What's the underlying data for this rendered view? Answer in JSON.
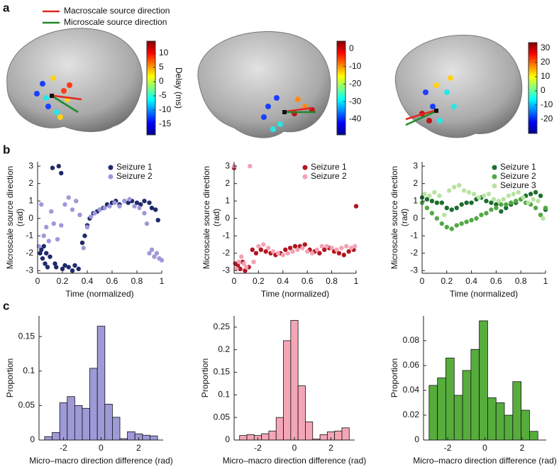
{
  "panel_labels": [
    "a",
    "b",
    "c"
  ],
  "legend_a": {
    "items": [
      {
        "name": "Macroscale source direction",
        "color": "#e3261e"
      },
      {
        "name": "Microscale source direction",
        "color": "#1d8a2a"
      }
    ]
  },
  "colorbars": [
    {
      "label": "Delay (ms)",
      "lim": [
        -18.75,
        14.25
      ],
      "ticks": [
        10,
        5,
        0,
        -5,
        -10,
        -15
      ]
    },
    {
      "lim": [
        -48.9,
        4.4
      ],
      "ticks": [
        0,
        -10,
        -20,
        -30,
        -40
      ]
    },
    {
      "lim": [
        -30,
        34
      ],
      "ticks": [
        30,
        20,
        10,
        0,
        -10,
        -20
      ]
    }
  ],
  "chart_data": [
    {
      "type": "scatter",
      "xlabel": "Time (normalized)",
      "ylabel": [
        "Microscale source direction",
        "(rad)"
      ],
      "legend": "upper right",
      "xlim": [
        0,
        1
      ],
      "xticks": [
        0,
        0.2,
        0.4,
        0.6,
        0.8,
        1
      ],
      "ylim": [
        -3.15,
        3.25
      ],
      "yticks": [
        -3,
        -2,
        -1,
        0,
        1,
        2,
        3
      ],
      "series": [
        {
          "name": "Seizure 1",
          "color": "#1f2a6b",
          "x": [
            0.02,
            0.03,
            0.04,
            0.05,
            0.06,
            0.07,
            0.08,
            0.1,
            0.12,
            0.14,
            0.15,
            0.17,
            0.19,
            0.2,
            0.22,
            0.25,
            0.28,
            0.3,
            0.33,
            0.36,
            0.38,
            0.4,
            0.42,
            0.45,
            0.48,
            0.5,
            0.53,
            0.56,
            0.6,
            0.63,
            0.66,
            0.7,
            0.73,
            0.76,
            0.8,
            0.83,
            0.86,
            0.9,
            0.92,
            0.95,
            0.97
          ],
          "values": [
            -2.0,
            -1.8,
            -2.3,
            -1.6,
            -2.6,
            -2.0,
            -2.8,
            -2.2,
            2.9,
            -2.6,
            -2.8,
            3.0,
            2.6,
            -2.9,
            -2.7,
            -2.8,
            -3.0,
            -2.7,
            -2.9,
            -1.4,
            -1.0,
            -0.4,
            0.0,
            0.3,
            0.4,
            0.5,
            0.6,
            0.8,
            0.9,
            1.0,
            0.8,
            1.0,
            0.9,
            1.0,
            0.9,
            0.8,
            1.0,
            0.9,
            0.6,
            0.5,
            -0.1
          ]
        },
        {
          "name": "Seizure 2",
          "color": "#9d99d9",
          "x": [
            0.01,
            0.03,
            0.05,
            0.07,
            0.09,
            0.11,
            0.13,
            0.16,
            0.19,
            0.22,
            0.25,
            0.28,
            0.31,
            0.34,
            0.37,
            0.4,
            0.43,
            0.46,
            0.5,
            0.54,
            0.58,
            0.62,
            0.66,
            0.7,
            0.74,
            0.78,
            0.82,
            0.86,
            0.88,
            0.9,
            0.92,
            0.94,
            0.96,
            0.98,
            1.0
          ],
          "values": [
            -1.6,
            0.8,
            -1.0,
            -0.5,
            -1.3,
            0.4,
            -0.3,
            -1.2,
            -0.4,
            0.8,
            1.2,
            0.5,
            1.0,
            0.2,
            -1.7,
            -0.5,
            0.1,
            0.3,
            0.5,
            0.6,
            0.7,
            0.9,
            0.7,
            1.0,
            1.1,
            0.7,
            0.6,
            0.3,
            -0.3,
            -2.0,
            -1.8,
            -2.2,
            -2.0,
            -2.3,
            -2.4
          ]
        }
      ]
    },
    {
      "type": "scatter",
      "xlabel": "Time (normalized)",
      "ylabel": [
        "Microscale source direction",
        "(rad)"
      ],
      "legend": "upper right",
      "xlim": [
        0,
        1
      ],
      "xticks": [
        0,
        0.2,
        0.4,
        0.6,
        0.8,
        1
      ],
      "ylim": [
        -3.15,
        3.25
      ],
      "yticks": [
        -3,
        -2,
        -1,
        0,
        1,
        2,
        3
      ],
      "series": [
        {
          "name": "Seizure 1",
          "color": "#b3141f",
          "x": [
            0.0,
            0.01,
            0.02,
            0.03,
            0.05,
            0.07,
            0.09,
            0.12,
            0.15,
            0.18,
            0.22,
            0.26,
            0.3,
            0.34,
            0.38,
            0.42,
            0.46,
            0.5,
            0.54,
            0.58,
            0.62,
            0.66,
            0.7,
            0.74,
            0.78,
            0.82,
            0.86,
            0.9,
            0.94,
            0.98,
            1.0
          ],
          "values": [
            2.9,
            -2.6,
            -2.9,
            -2.7,
            -2.9,
            -2.5,
            -3.0,
            -2.8,
            -1.8,
            -2.0,
            -1.8,
            -1.9,
            -2.0,
            -2.1,
            -2.0,
            -1.8,
            -1.7,
            -1.6,
            -1.6,
            -1.5,
            -1.8,
            -1.9,
            -2.0,
            -1.8,
            -1.7,
            -1.9,
            -2.0,
            -2.1,
            -1.9,
            -1.8,
            0.7
          ]
        },
        {
          "name": "Seizure 2",
          "color": "#f3a1b3",
          "x": [
            0.0,
            0.02,
            0.04,
            0.06,
            0.08,
            0.1,
            0.13,
            0.16,
            0.2,
            0.24,
            0.28,
            0.32,
            0.36,
            0.4,
            0.44,
            0.48,
            0.52,
            0.56,
            0.6,
            0.64,
            0.68,
            0.72,
            0.76,
            0.8,
            0.84,
            0.88,
            0.92,
            0.96,
            0.99
          ],
          "values": [
            3.0,
            -2.9,
            -2.5,
            -2.2,
            -2.6,
            -2.8,
            3.0,
            -2.5,
            -1.6,
            -1.5,
            -1.7,
            -1.9,
            -2.0,
            -2.1,
            -2.0,
            -1.9,
            -1.8,
            -1.7,
            -1.9,
            -2.0,
            -1.8,
            -1.6,
            -1.6,
            -1.7,
            -1.8,
            -1.7,
            -1.6,
            -1.7,
            -1.6
          ]
        }
      ]
    },
    {
      "type": "scatter",
      "xlabel": "Time (normalized)",
      "ylabel": [
        "Microscale source direction",
        "(rad)"
      ],
      "legend": "upper right",
      "xlim": [
        0,
        1
      ],
      "xticks": [
        0,
        0.2,
        0.4,
        0.6,
        0.8,
        1
      ],
      "ylim": [
        -3.15,
        3.25
      ],
      "yticks": [
        -3,
        -2,
        -1,
        0,
        1,
        2,
        3
      ],
      "series": [
        {
          "name": "Seizure 1",
          "color": "#1b6e2e",
          "x": [
            0.0,
            0.04,
            0.08,
            0.12,
            0.16,
            0.2,
            0.24,
            0.28,
            0.32,
            0.36,
            0.4,
            0.44,
            0.48,
            0.52,
            0.56,
            0.6,
            0.64,
            0.68,
            0.72,
            0.76,
            0.8,
            0.84,
            0.88,
            0.92,
            0.96,
            1.0
          ],
          "values": [
            1.2,
            1.1,
            1.0,
            0.9,
            0.9,
            0.6,
            0.5,
            0.6,
            0.8,
            0.9,
            0.9,
            1.1,
            1.2,
            1.0,
            0.9,
            0.8,
            0.4,
            0.6,
            0.8,
            0.9,
            1.1,
            1.3,
            1.4,
            1.5,
            1.3,
            0.5
          ]
        },
        {
          "name": "Seizure 2",
          "color": "#52a845",
          "x": [
            0.0,
            0.04,
            0.08,
            0.12,
            0.16,
            0.2,
            0.24,
            0.28,
            0.32,
            0.36,
            0.4,
            0.44,
            0.48,
            0.52,
            0.56,
            0.6,
            0.64,
            0.68,
            0.72,
            0.76,
            0.8,
            0.84,
            0.88,
            0.92,
            0.96,
            1.0
          ],
          "values": [
            0.9,
            0.6,
            0.3,
            0.0,
            -0.3,
            -0.5,
            -0.6,
            -0.4,
            -0.3,
            -0.2,
            -0.1,
            0.0,
            0.2,
            0.3,
            0.5,
            0.6,
            0.8,
            0.8,
            0.9,
            1.0,
            1.1,
            0.9,
            0.8,
            0.6,
            0.2,
            0.6
          ]
        },
        {
          "name": "Seizure 3",
          "color": "#b8e3a2",
          "x": [
            0.02,
            0.06,
            0.1,
            0.14,
            0.18,
            0.22,
            0.26,
            0.3,
            0.34,
            0.38,
            0.42,
            0.46,
            0.5,
            0.54,
            0.58,
            0.62,
            0.66,
            0.7,
            0.74,
            0.78,
            0.82,
            0.86,
            0.9,
            0.94,
            0.98
          ],
          "values": [
            1.4,
            1.3,
            1.5,
            1.3,
            0.2,
            1.6,
            1.8,
            1.9,
            1.6,
            1.5,
            1.4,
            1.2,
            1.3,
            1.4,
            1.1,
            1.0,
            1.1,
            1.3,
            1.4,
            1.5,
            1.2,
            0.9,
            1.1,
            1.0,
            0.0
          ]
        }
      ]
    },
    {
      "type": "histogram",
      "xlabel": "Micro–macro direction difference (rad)",
      "ylabel": "Proportion",
      "color": "#9e9ad8",
      "xlim": [
        -3.3,
        3.3
      ],
      "xticks": [
        -2,
        0,
        2
      ],
      "ylim": [
        0,
        0.18
      ],
      "yticks": [
        0,
        0.05,
        0.1,
        0.15
      ],
      "bins": [
        -3,
        -2.6,
        -2.2,
        -1.8,
        -1.4,
        -1,
        -0.6,
        -0.2,
        0.2,
        0.6,
        1,
        1.4,
        1.8,
        2.2,
        2.6,
        3
      ],
      "counts": [
        0.005,
        0.011,
        0.054,
        0.063,
        0.05,
        0.046,
        0.104,
        0.165,
        0.052,
        0.033,
        0.002,
        0.012,
        0.009,
        0.007,
        0.006
      ]
    },
    {
      "type": "histogram",
      "xlabel": "Micro–macro direction difference (rad)",
      "ylabel": "Proportion",
      "color": "#f4a6b6",
      "xlim": [
        -3.3,
        3.3
      ],
      "xticks": [
        -2,
        0,
        2
      ],
      "ylim": [
        0,
        0.275
      ],
      "yticks": [
        0,
        0.05,
        0.1,
        0.15,
        0.2,
        0.25
      ],
      "bins": [
        -3,
        -2.6,
        -2.2,
        -1.8,
        -1.4,
        -1,
        -0.6,
        -0.2,
        0.2,
        0.6,
        1,
        1.4,
        1.8,
        2.2,
        2.6,
        3
      ],
      "counts": [
        0.01,
        0.012,
        0.01,
        0.014,
        0.02,
        0.05,
        0.22,
        0.265,
        0.12,
        0.04,
        0.002,
        0.012,
        0.018,
        0.02,
        0.027
      ]
    },
    {
      "type": "histogram",
      "xlabel": "Micro–macro direction difference (rad)",
      "ylabel": "Proportion",
      "color": "#56ad3c",
      "xlim": [
        -3.3,
        3.3
      ],
      "xticks": [
        -2,
        0,
        2
      ],
      "ylim": [
        0,
        0.1
      ],
      "yticks": [
        0,
        0.02,
        0.04,
        0.06,
        0.08
      ],
      "bins": [
        -3,
        -2.55,
        -2.1,
        -1.65,
        -1.2,
        -0.75,
        -0.3,
        0.15,
        0.6,
        1.05,
        1.5,
        1.95,
        2.4,
        2.85
      ],
      "counts": [
        0.044,
        0.05,
        0.066,
        0.036,
        0.056,
        0.073,
        0.096,
        0.034,
        0.03,
        0.02,
        0.047,
        0.024,
        0.007
      ]
    }
  ]
}
